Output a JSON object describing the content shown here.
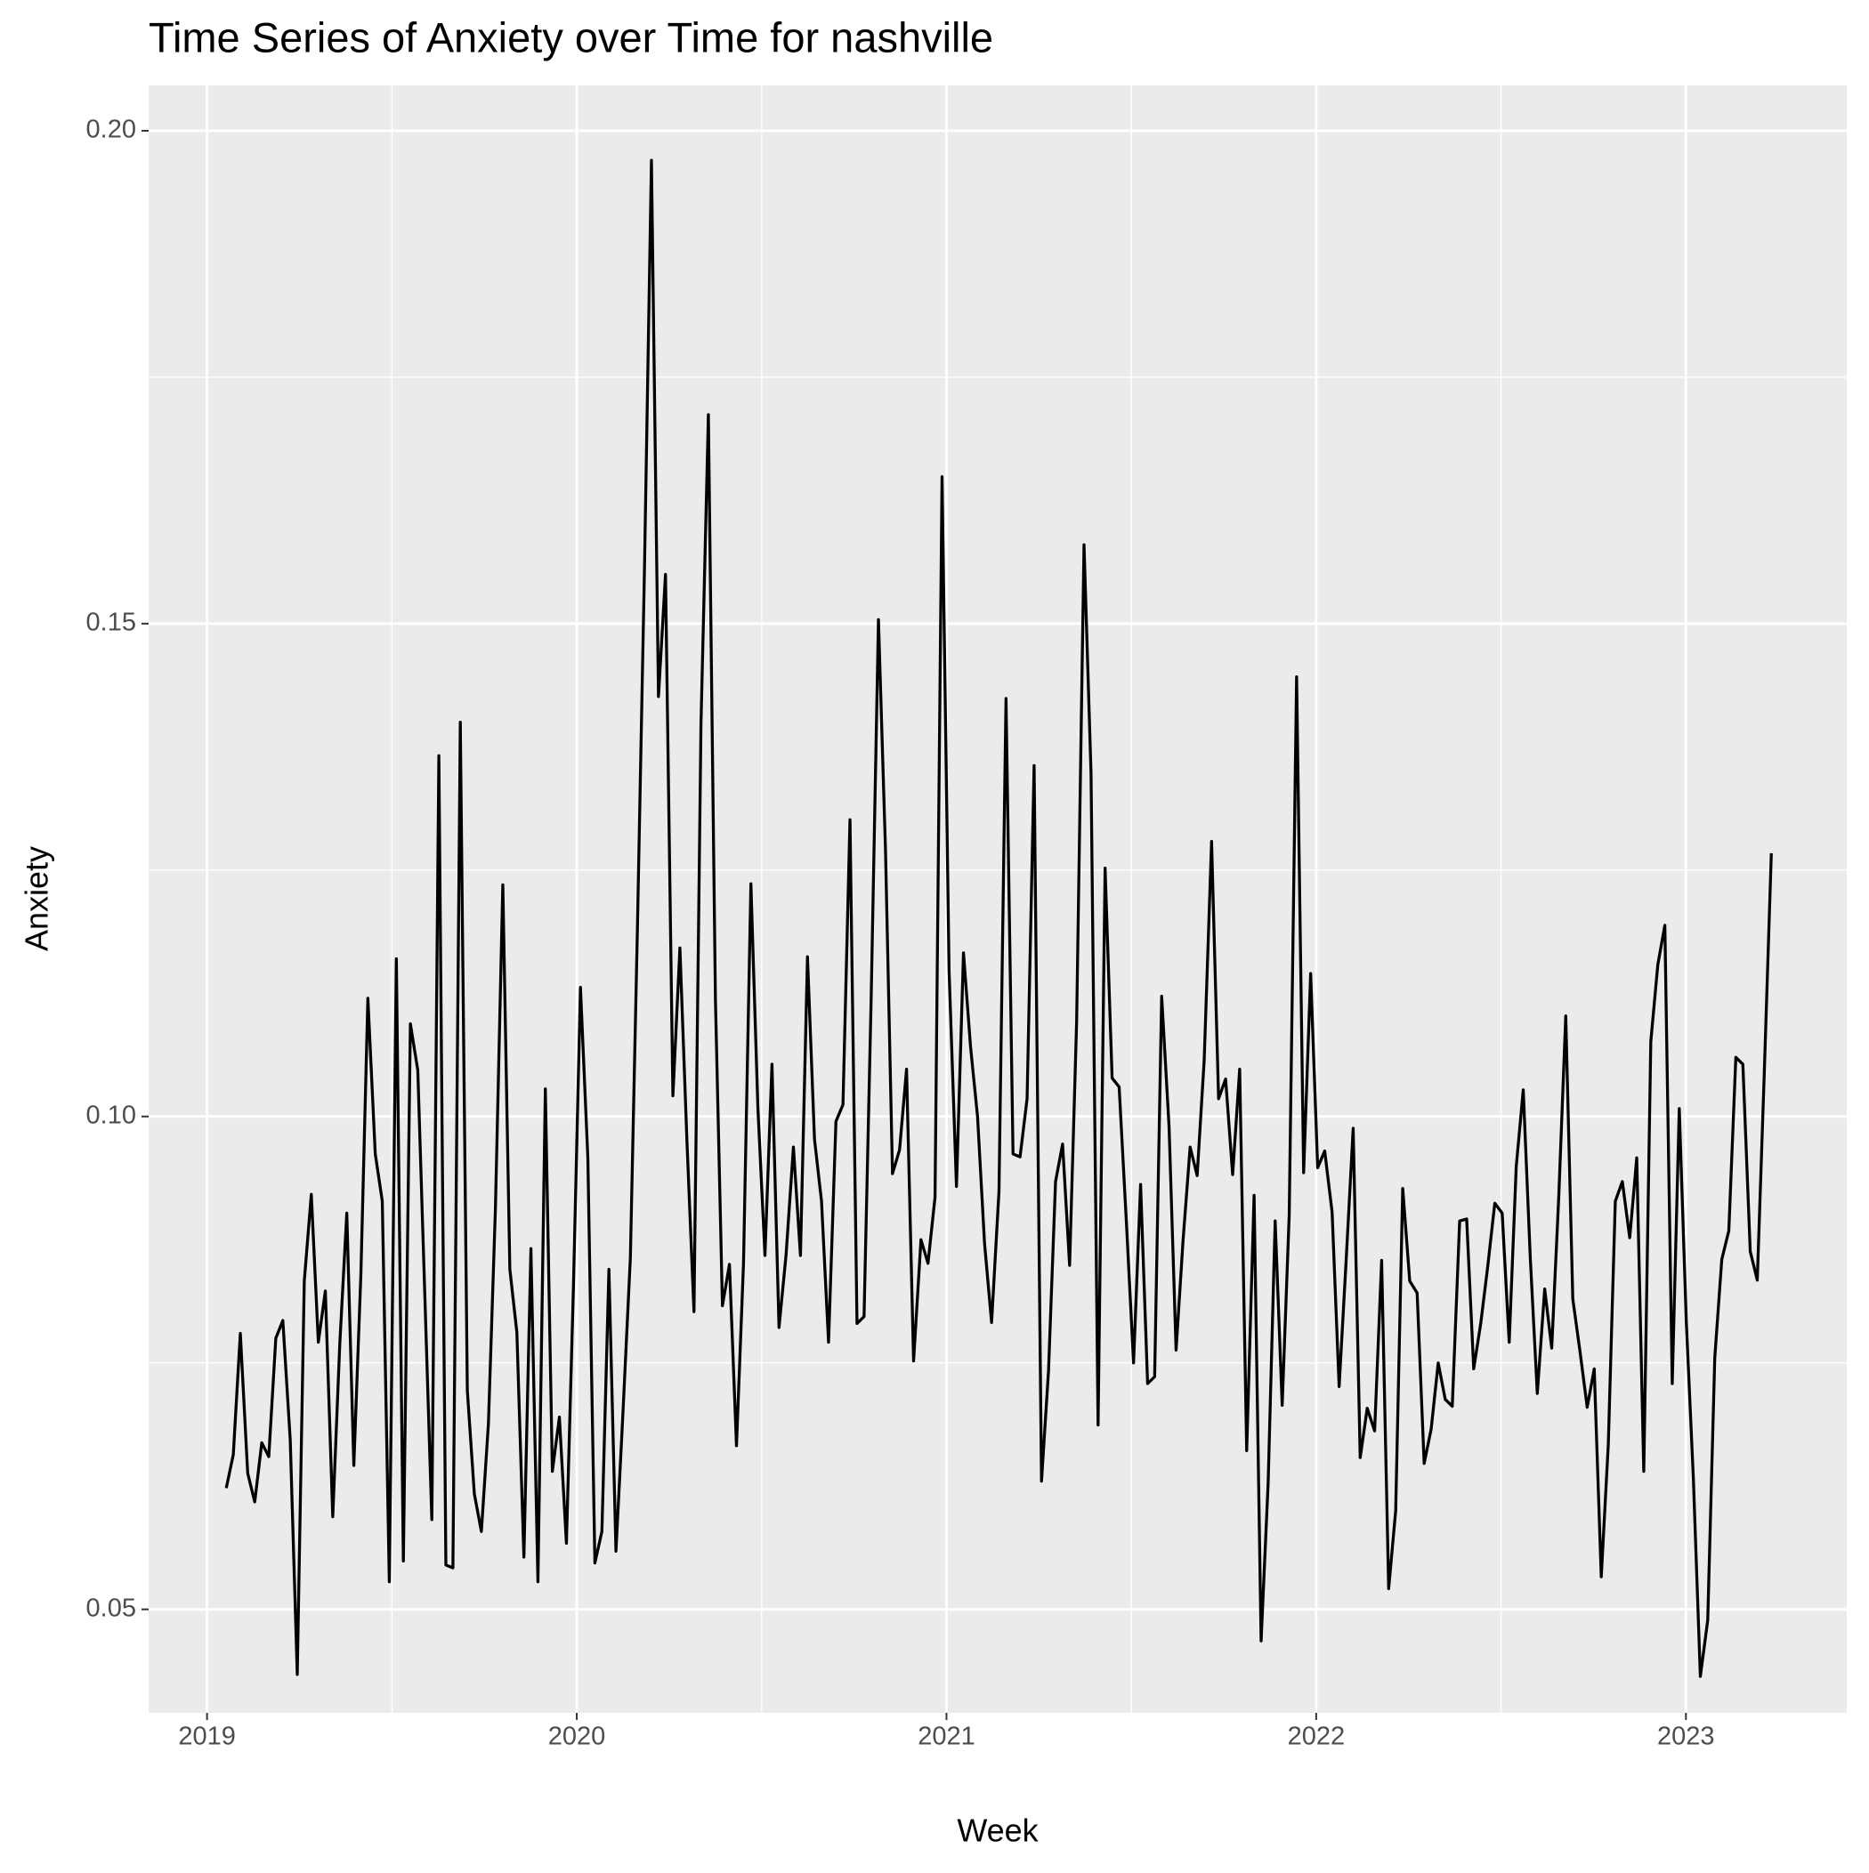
{
  "chart_data": {
    "type": "line",
    "title": "Time Series of Anxiety over Time for  nashville",
    "x_label": "Week",
    "y_label": "Anxiety",
    "color": "#000000",
    "grid": true,
    "xlim": [
      2018.842,
      2023.435
    ],
    "ylim": [
      0.0395,
      0.2046
    ],
    "xticks": [
      2019,
      2020,
      2021,
      2022,
      2023
    ],
    "yticks": [
      0.05,
      {
        "value": 0.1,
        "label": "0.10"
      },
      0.15,
      {
        "value": 0.2,
        "label": "0.20"
      }
    ],
    "x": [
      2019.052,
      2019.071,
      2019.09,
      2019.11,
      2019.129,
      2019.148,
      2019.167,
      2019.186,
      2019.205,
      2019.225,
      2019.244,
      2019.263,
      2019.282,
      2019.301,
      2019.32,
      2019.34,
      2019.359,
      2019.378,
      2019.397,
      2019.416,
      2019.435,
      2019.455,
      2019.474,
      2019.493,
      2019.512,
      2019.531,
      2019.55,
      2019.57,
      2019.589,
      2019.608,
      2019.627,
      2019.646,
      2019.665,
      2019.685,
      2019.704,
      2019.723,
      2019.742,
      2019.761,
      2019.78,
      2019.8,
      2019.819,
      2019.838,
      2019.857,
      2019.876,
      2019.895,
      2019.915,
      2019.934,
      2019.953,
      2019.972,
      2019.991,
      2020.01,
      2020.03,
      2020.049,
      2020.068,
      2020.087,
      2020.106,
      2020.125,
      2020.145,
      2020.164,
      2020.183,
      2020.202,
      2020.221,
      2020.24,
      2020.26,
      2020.279,
      2020.298,
      2020.317,
      2020.336,
      2020.356,
      2020.375,
      2020.394,
      2020.413,
      2020.432,
      2020.451,
      2020.471,
      2020.49,
      2020.509,
      2020.528,
      2020.547,
      2020.566,
      2020.586,
      2020.605,
      2020.624,
      2020.643,
      2020.662,
      2020.681,
      2020.701,
      2020.72,
      2020.739,
      2020.758,
      2020.777,
      2020.796,
      2020.816,
      2020.835,
      2020.854,
      2020.873,
      2020.892,
      2020.911,
      2020.931,
      2020.95,
      2020.969,
      2020.988,
      2021.007,
      2021.027,
      2021.046,
      2021.065,
      2021.084,
      2021.103,
      2021.122,
      2021.142,
      2021.161,
      2021.18,
      2021.199,
      2021.218,
      2021.237,
      2021.257,
      2021.276,
      2021.295,
      2021.314,
      2021.333,
      2021.352,
      2021.372,
      2021.391,
      2021.41,
      2021.429,
      2021.448,
      2021.467,
      2021.487,
      2021.506,
      2021.525,
      2021.544,
      2021.563,
      2021.582,
      2021.602,
      2021.621,
      2021.64,
      2021.659,
      2021.678,
      2021.697,
      2021.717,
      2021.736,
      2021.755,
      2021.774,
      2021.793,
      2021.812,
      2021.832,
      2021.851,
      2021.87,
      2021.889,
      2021.908,
      2021.927,
      2021.947,
      2021.966,
      2021.985,
      2022.004,
      2022.023,
      2022.043,
      2022.062,
      2022.081,
      2022.1,
      2022.119,
      2022.138,
      2022.158,
      2022.177,
      2022.196,
      2022.215,
      2022.234,
      2022.253,
      2022.273,
      2022.292,
      2022.311,
      2022.33,
      2022.349,
      2022.368,
      2022.388,
      2022.407,
      2022.426,
      2022.445,
      2022.464,
      2022.483,
      2022.503,
      2022.522,
      2022.541,
      2022.56,
      2022.579,
      2022.598,
      2022.618,
      2022.637,
      2022.656,
      2022.675,
      2022.694,
      2022.713,
      2022.733,
      2022.752,
      2022.771,
      2022.79,
      2022.809,
      2022.828,
      2022.848,
      2022.867,
      2022.886,
      2022.905,
      2022.924,
      2022.943,
      2022.963,
      2022.982,
      2023.001,
      2023.02,
      2023.039,
      2023.059,
      2023.078,
      2023.097,
      2023.116,
      2023.135,
      2023.154,
      2023.174,
      2023.193,
      2023.212,
      2023.231
    ],
    "values": [
      0.0623,
      0.0657,
      0.078,
      0.0638,
      0.0609,
      0.0669,
      0.0655,
      0.0775,
      0.0793,
      0.0672,
      0.0434,
      0.0833,
      0.0921,
      0.0771,
      0.0823,
      0.0594,
      0.0769,
      0.0902,
      0.0646,
      0.0839,
      0.112,
      0.0962,
      0.0914,
      0.0528,
      0.116,
      0.0549,
      0.1094,
      0.1047,
      0.0819,
      0.0591,
      0.1366,
      0.0545,
      0.0542,
      0.14,
      0.0722,
      0.0617,
      0.0579,
      0.0688,
      0.0907,
      0.1235,
      0.0845,
      0.0781,
      0.0553,
      0.0866,
      0.0528,
      0.1028,
      0.064,
      0.0695,
      0.0567,
      0.0827,
      0.1131,
      0.0958,
      0.0547,
      0.0579,
      0.0845,
      0.0559,
      0.07,
      0.0857,
      0.119,
      0.1553,
      0.197,
      0.1426,
      0.155,
      0.1021,
      0.1171,
      0.0975,
      0.0802,
      0.1399,
      0.1712,
      0.112,
      0.0808,
      0.085,
      0.0666,
      0.0851,
      0.1236,
      0.1008,
      0.0859,
      0.1053,
      0.0786,
      0.0859,
      0.0969,
      0.0859,
      0.1162,
      0.0977,
      0.0914,
      0.0771,
      0.0995,
      0.1012,
      0.1301,
      0.079,
      0.0797,
      0.1115,
      0.1504,
      0.1271,
      0.0942,
      0.0966,
      0.1048,
      0.0752,
      0.0875,
      0.0851,
      0.0918,
      0.1649,
      0.1148,
      0.0929,
      0.1166,
      0.1071,
      0.1,
      0.0871,
      0.0791,
      0.0924,
      0.1424,
      0.0962,
      0.0959,
      0.1018,
      0.1356,
      0.063,
      0.0742,
      0.0934,
      0.0972,
      0.0849,
      0.1096,
      0.158,
      0.1348,
      0.0687,
      0.1252,
      0.1039,
      0.103,
      0.089,
      0.075,
      0.0931,
      0.0729,
      0.0736,
      0.1122,
      0.099,
      0.0763,
      0.0875,
      0.0969,
      0.094,
      0.1057,
      0.1279,
      0.1018,
      0.1038,
      0.0941,
      0.1048,
      0.0661,
      0.092,
      0.0468,
      0.0628,
      0.0894,
      0.0707,
      0.09,
      0.1446,
      0.0943,
      0.1145,
      0.0948,
      0.0965,
      0.0903,
      0.0726,
      0.0854,
      0.0988,
      0.0654,
      0.0704,
      0.0681,
      0.0854,
      0.0521,
      0.06,
      0.0927,
      0.0833,
      0.0821,
      0.0648,
      0.0683,
      0.075,
      0.0713,
      0.0706,
      0.0894,
      0.0896,
      0.0744,
      0.079,
      0.0848,
      0.0912,
      0.0902,
      0.0771,
      0.0949,
      0.1027,
      0.0857,
      0.0719,
      0.0825,
      0.0765,
      0.0918,
      0.1102,
      0.0815,
      0.0763,
      0.0705,
      0.0744,
      0.0533,
      0.0667,
      0.0914,
      0.0934,
      0.0877,
      0.0958,
      0.064,
      0.1076,
      0.1154,
      0.1194,
      0.0729,
      0.1008,
      0.0792,
      0.0634,
      0.0432,
      0.0489,
      0.0755,
      0.0855,
      0.0884,
      0.106,
      0.1053,
      0.0863,
      0.0834,
      0.1045,
      0.1267
    ]
  }
}
